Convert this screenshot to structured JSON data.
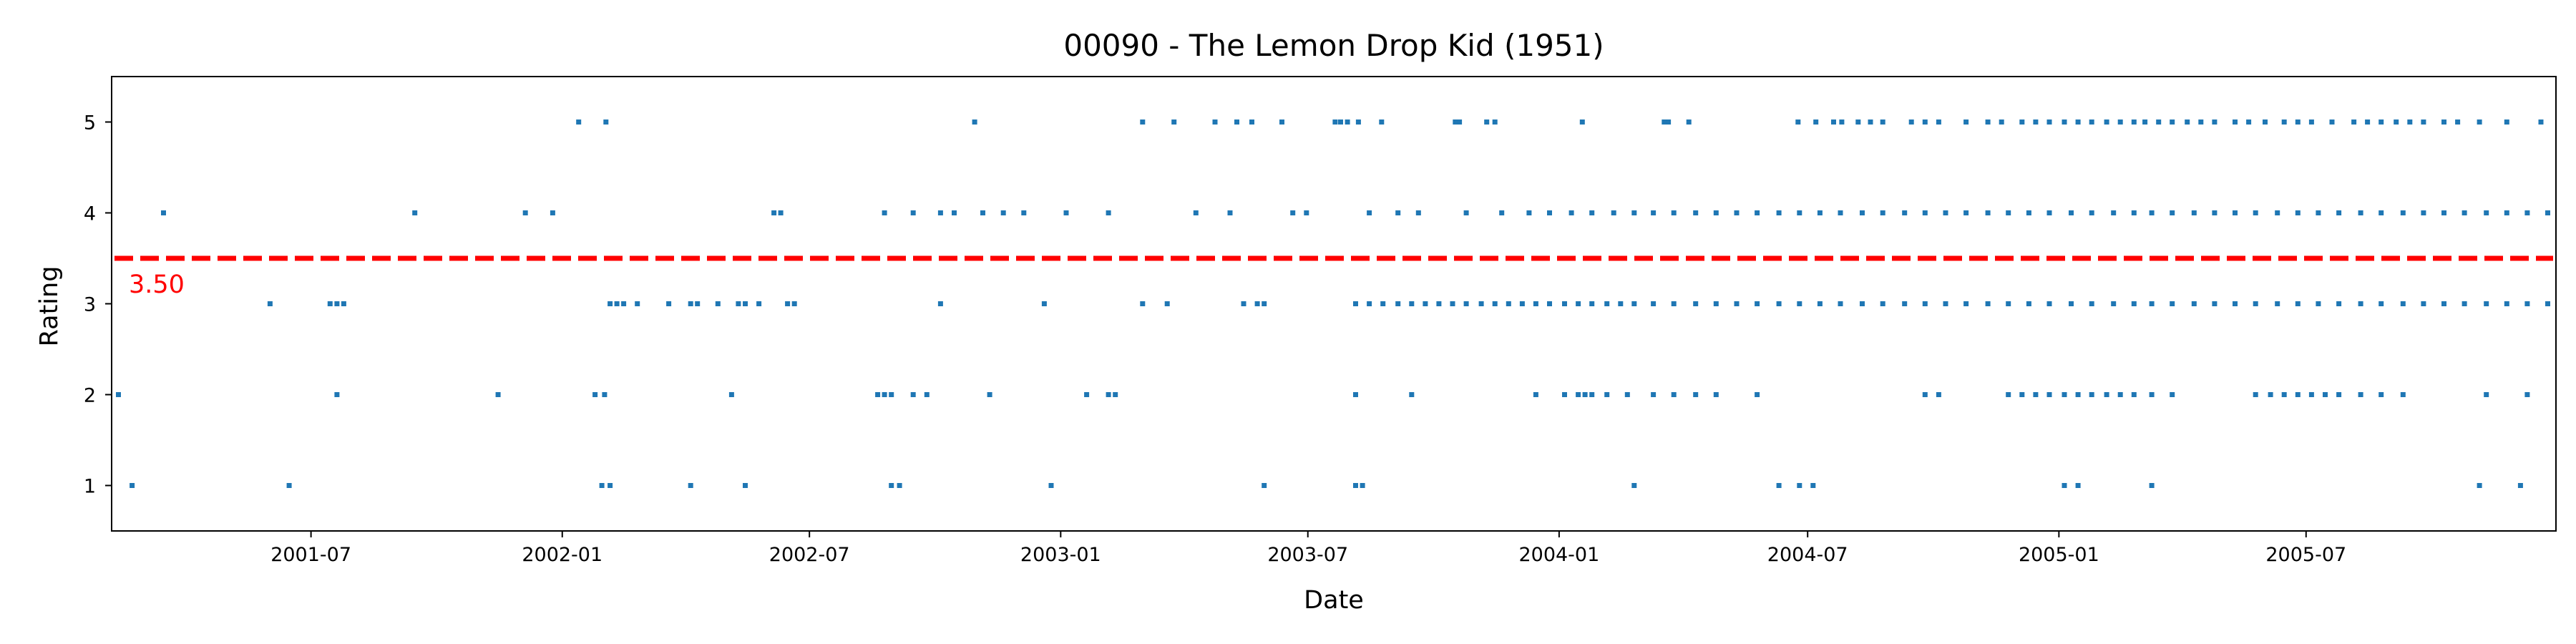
{
  "chart_data": {
    "type": "scatter",
    "title": "00090 - The Lemon Drop Kid (1951)",
    "xlabel": "Date",
    "ylabel": "Rating",
    "xlim": [
      "2001-02-05",
      "2005-12-31"
    ],
    "ylim": [
      0.5,
      5.5
    ],
    "x_ticks": [
      "2001-07",
      "2002-01",
      "2002-07",
      "2003-01",
      "2003-07",
      "2004-01",
      "2004-07",
      "2005-01",
      "2005-07"
    ],
    "y_ticks": [
      1,
      2,
      3,
      4,
      5
    ],
    "grid": false,
    "legend": "none",
    "colors": {
      "points": "#1f77b4",
      "reference_line": "#ff0000"
    },
    "reference_line": {
      "y": 3.5,
      "label": "3.50",
      "style": "dashed"
    },
    "series": [
      {
        "rating": 5,
        "dates": [
          "2002-01-13",
          "2002-02-02",
          "2002-10-30",
          "2003-03-02",
          "2003-03-25",
          "2003-04-24",
          "2003-05-10",
          "2003-05-21",
          "2003-06-12",
          "2003-07-21",
          "2003-07-25",
          "2003-07-30",
          "2003-08-07",
          "2003-08-24",
          "2003-10-17",
          "2003-10-20",
          "2003-11-09",
          "2003-11-15",
          "2004-01-18",
          "2004-03-18",
          "2004-03-21",
          "2004-04-05",
          "2004-06-24",
          "2004-07-07",
          "2004-07-20",
          "2004-07-26",
          "2004-08-07",
          "2004-08-16",
          "2004-08-25",
          "2004-09-15",
          "2004-09-25",
          "2004-10-05",
          "2004-10-25",
          "2004-11-10",
          "2004-11-20",
          "2004-12-05",
          "2004-12-15",
          "2004-12-25",
          "2005-01-05",
          "2005-01-15",
          "2005-01-25",
          "2005-02-05",
          "2005-02-15",
          "2005-02-25",
          "2005-03-05",
          "2005-03-15",
          "2005-03-25",
          "2005-04-05",
          "2005-04-15",
          "2005-04-25",
          "2005-05-10",
          "2005-05-20",
          "2005-06-01",
          "2005-06-15",
          "2005-06-25",
          "2005-07-05",
          "2005-07-20",
          "2005-08-05",
          "2005-08-15",
          "2005-08-25",
          "2005-09-05",
          "2005-09-15",
          "2005-09-25",
          "2005-10-10",
          "2005-10-20",
          "2005-11-05",
          "2005-11-25",
          "2005-12-20"
        ]
      },
      {
        "rating": 4,
        "dates": [
          "2001-03-15",
          "2001-09-15",
          "2001-12-05",
          "2001-12-25",
          "2002-06-05",
          "2002-06-10",
          "2002-08-25",
          "2002-09-15",
          "2002-10-05",
          "2002-10-15",
          "2002-11-05",
          "2002-11-20",
          "2002-12-05",
          "2003-01-05",
          "2003-02-05",
          "2003-04-10",
          "2003-05-05",
          "2003-06-20",
          "2003-06-30",
          "2003-08-15",
          "2003-09-05",
          "2003-09-20",
          "2003-10-25",
          "2003-11-20",
          "2003-12-10",
          "2003-12-25",
          "2004-01-10",
          "2004-01-25",
          "2004-02-10",
          "2004-02-25",
          "2004-03-10",
          "2004-03-25",
          "2004-04-10",
          "2004-04-25",
          "2004-05-10",
          "2004-05-25",
          "2004-06-10",
          "2004-06-25",
          "2004-07-10",
          "2004-07-25",
          "2004-08-10",
          "2004-08-25",
          "2004-09-10",
          "2004-09-25",
          "2004-10-10",
          "2004-10-25",
          "2004-11-10",
          "2004-11-25",
          "2004-12-10",
          "2004-12-25",
          "2005-01-10",
          "2005-01-25",
          "2005-02-10",
          "2005-02-25",
          "2005-03-10",
          "2005-03-25",
          "2005-04-10",
          "2005-04-25",
          "2005-05-10",
          "2005-05-25",
          "2005-06-10",
          "2005-06-25",
          "2005-07-10",
          "2005-07-25",
          "2005-08-10",
          "2005-08-25",
          "2005-09-10",
          "2005-09-25",
          "2005-10-10",
          "2005-10-25",
          "2005-11-10",
          "2005-11-25",
          "2005-12-10",
          "2005-12-25"
        ]
      },
      {
        "rating": 3,
        "dates": [
          "2001-06-01",
          "2001-07-15",
          "2001-07-20",
          "2001-07-25",
          "2002-02-05",
          "2002-02-10",
          "2002-02-15",
          "2002-02-25",
          "2002-03-20",
          "2002-04-05",
          "2002-04-10",
          "2002-04-25",
          "2002-05-10",
          "2002-05-15",
          "2002-05-25",
          "2002-06-15",
          "2002-06-20",
          "2002-10-05",
          "2002-12-20",
          "2003-03-02",
          "2003-03-20",
          "2003-05-15",
          "2003-05-25",
          "2003-05-30",
          "2003-08-05",
          "2003-08-15",
          "2003-08-25",
          "2003-09-05",
          "2003-09-15",
          "2003-09-25",
          "2003-10-05",
          "2003-10-15",
          "2003-10-25",
          "2003-11-05",
          "2003-11-15",
          "2003-11-25",
          "2003-12-05",
          "2003-12-15",
          "2003-12-25",
          "2004-01-05",
          "2004-01-15",
          "2004-01-25",
          "2004-02-05",
          "2004-02-15",
          "2004-02-25",
          "2004-03-10",
          "2004-03-25",
          "2004-04-10",
          "2004-04-25",
          "2004-05-10",
          "2004-05-25",
          "2004-06-10",
          "2004-06-25",
          "2004-07-10",
          "2004-07-25",
          "2004-08-10",
          "2004-08-25",
          "2004-09-10",
          "2004-09-25",
          "2004-10-10",
          "2004-10-25",
          "2004-11-10",
          "2004-11-25",
          "2004-12-10",
          "2004-12-25",
          "2005-01-10",
          "2005-01-25",
          "2005-02-10",
          "2005-02-25",
          "2005-03-10",
          "2005-03-25",
          "2005-04-10",
          "2005-04-25",
          "2005-05-10",
          "2005-05-25",
          "2005-06-10",
          "2005-06-25",
          "2005-07-10",
          "2005-07-25",
          "2005-08-10",
          "2005-08-25",
          "2005-09-10",
          "2005-09-25",
          "2005-10-10",
          "2005-10-25",
          "2005-11-10",
          "2005-11-25",
          "2005-12-10",
          "2005-12-25"
        ]
      },
      {
        "rating": 2,
        "dates": [
          "2001-02-10",
          "2001-07-20",
          "2001-11-15",
          "2002-01-25",
          "2002-02-01",
          "2002-05-05",
          "2002-08-20",
          "2002-08-25",
          "2002-08-30",
          "2002-09-15",
          "2002-09-25",
          "2002-11-10",
          "2003-01-20",
          "2003-02-05",
          "2003-02-10",
          "2003-08-05",
          "2003-09-15",
          "2003-12-15",
          "2004-01-05",
          "2004-01-15",
          "2004-01-20",
          "2004-01-25",
          "2004-02-05",
          "2004-02-20",
          "2004-03-10",
          "2004-03-25",
          "2004-04-10",
          "2004-04-25",
          "2004-05-25",
          "2004-09-25",
          "2004-10-05",
          "2004-11-25",
          "2004-12-05",
          "2004-12-15",
          "2004-12-25",
          "2005-01-05",
          "2005-01-15",
          "2005-01-25",
          "2005-02-05",
          "2005-02-15",
          "2005-02-25",
          "2005-03-10",
          "2005-03-25",
          "2005-05-25",
          "2005-06-05",
          "2005-06-15",
          "2005-06-25",
          "2005-07-05",
          "2005-07-15",
          "2005-07-25",
          "2005-08-10",
          "2005-08-25",
          "2005-09-10",
          "2005-11-10",
          "2005-12-10"
        ]
      },
      {
        "rating": 1,
        "dates": [
          "2001-02-20",
          "2001-06-15",
          "2002-01-30",
          "2002-02-05",
          "2002-04-05",
          "2002-05-15",
          "2002-08-30",
          "2002-09-05",
          "2002-12-25",
          "2003-05-30",
          "2003-08-05",
          "2003-08-10",
          "2004-02-25",
          "2004-06-10",
          "2004-06-25",
          "2004-07-05",
          "2005-01-05",
          "2005-01-15",
          "2005-03-10",
          "2005-11-05",
          "2005-12-05"
        ]
      }
    ]
  }
}
